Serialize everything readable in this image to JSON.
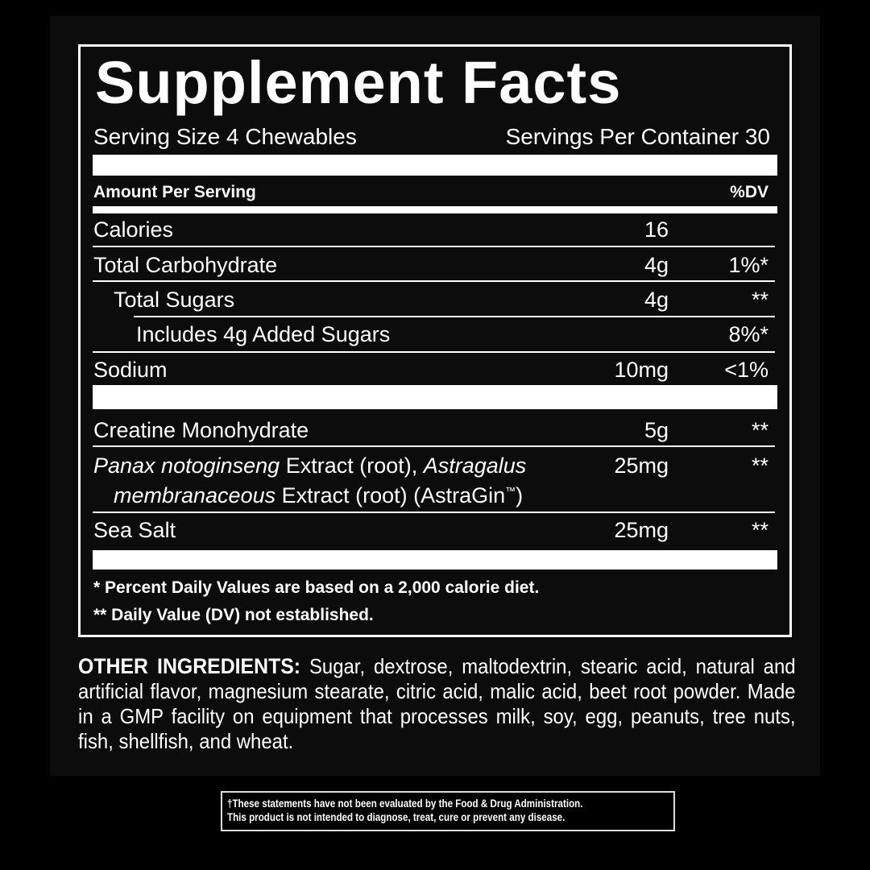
{
  "title": "Supplement Facts",
  "serving_size": "Serving Size 4 Chewables",
  "servings_per_container": "Servings Per Container 30",
  "header": {
    "amount": "Amount Per Serving",
    "dv": "%DV"
  },
  "rows": [
    {
      "name": "Calories",
      "amount": "16",
      "dv": ""
    },
    {
      "name": "Total Carbohydrate",
      "amount": "4g",
      "dv": "1%*"
    },
    {
      "name": "Total Sugars",
      "amount": "4g",
      "dv": "**"
    },
    {
      "name": "Includes 4g Added Sugars",
      "amount": "",
      "dv": "8%*"
    },
    {
      "name": "Sodium",
      "amount": "10mg",
      "dv": "<1%"
    },
    {
      "name": "Creatine Monohydrate",
      "amount": "5g",
      "dv": "**"
    },
    {
      "name_italic1": "Panax notoginseng",
      "name_mid": " Extract (root), ",
      "name_italic2": "Astragalus",
      "name_line2_italic": "membranaceous",
      "name_line2": " Extract (root) (AstraGin",
      "tm": "™",
      "name_line2_end": ")",
      "amount": "25mg",
      "dv": "**"
    },
    {
      "name": "Sea Salt",
      "amount": "25mg",
      "dv": "**"
    }
  ],
  "footnotes": [
    "* Percent Daily Values are based on a 2,000 calorie diet.",
    "** Daily Value (DV) not established."
  ],
  "other_ingredients": {
    "label": "OTHER INGREDIENTS:",
    "text": " Sugar, dextrose, maltodextrin, stearic acid, natural and artificial flavor, magnesium stearate, citric acid, malic acid, beet root powder. Made in a GMP facility on equipment that processes milk, soy, egg, peanuts, tree nuts, fish, shellfish, and wheat."
  },
  "disclaimer": [
    "†These statements have not been evaluated by the Food & Drug Administration.",
    "This product is not intended to diagnose, treat, cure or prevent any disease."
  ]
}
